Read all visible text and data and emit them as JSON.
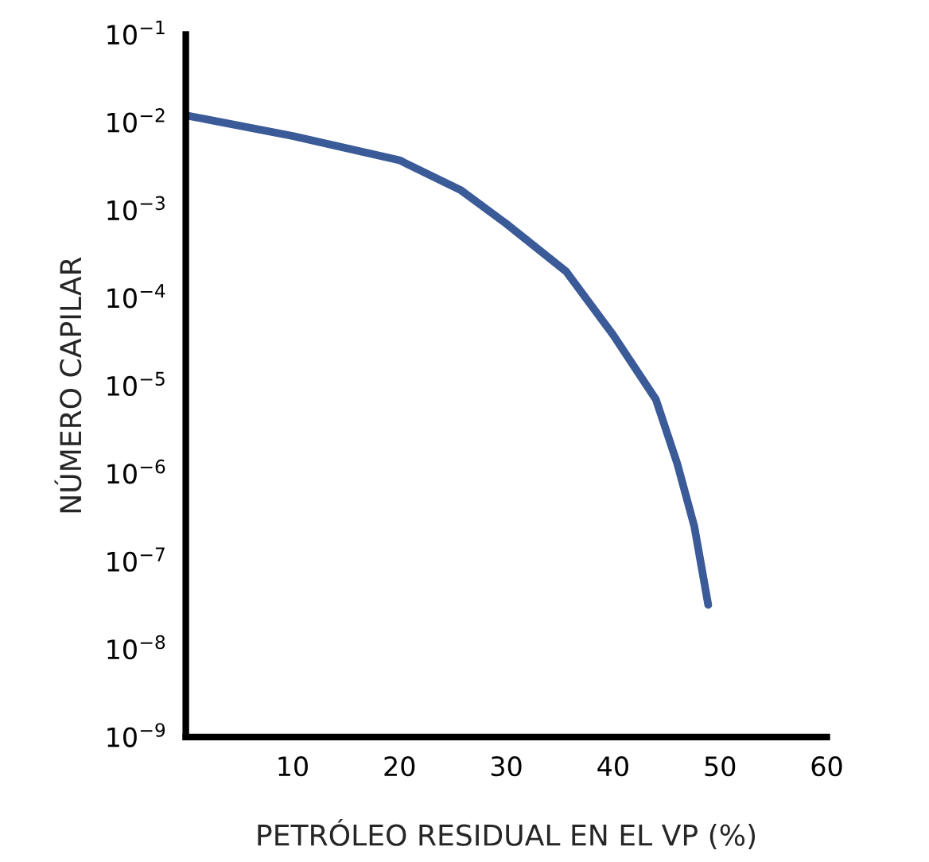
{
  "chart_data": {
    "type": "line",
    "xlabel": "PETRÓLEO RESIDUAL EN EL VP (%)",
    "ylabel": "NÚMERO CAPILAR",
    "log": "y",
    "grid": false,
    "legend": false,
    "marker": "none",
    "line_style": "solid",
    "xlim": [
      0,
      60
    ],
    "xticks": [
      10,
      20,
      30,
      40,
      50,
      60
    ],
    "ylim": [
      1e-09,
      0.1
    ],
    "yticks": [
      {
        "value": 1e-09,
        "label": "10$^{−9}$"
      },
      {
        "value": 1e-08,
        "label": "10$^{−8}$"
      },
      {
        "value": 1e-07,
        "label": "10$^{−7}$"
      },
      {
        "value": 1e-06,
        "label": "10$^{−6}$"
      },
      {
        "value": 1e-05,
        "label": "10$^{−5}$"
      },
      {
        "value": 0.0001,
        "label": "10$^{−4}$"
      },
      {
        "value": 0.001,
        "label": "10$^{−3}$"
      },
      {
        "value": 0.01,
        "label": "10$^{−2}$"
      },
      {
        "value": 0.1,
        "label": "10$^{−1}$"
      }
    ],
    "x": [
      0,
      10,
      20,
      25.7,
      30,
      35.6,
      40,
      44,
      46,
      47.6,
      48.9
    ],
    "series": [
      {
        "color": "#3a5a98",
        "values": [
          0.012,
          0.007,
          0.0037,
          0.0017,
          0.0007,
          0.0002,
          3.8e-05,
          7e-06,
          1.3e-06,
          2.5e-07,
          3.2e-08
        ]
      }
    ]
  }
}
